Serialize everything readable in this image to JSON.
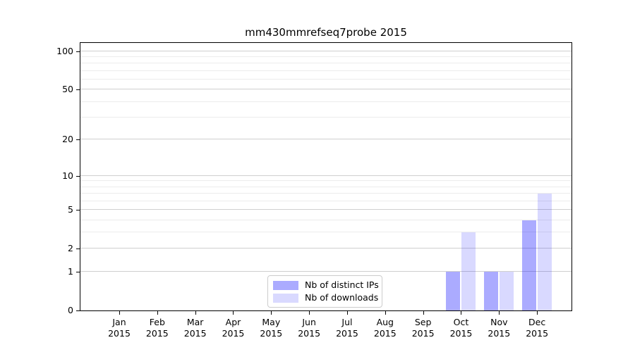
{
  "chart_data": {
    "type": "bar",
    "title": "mm430mmrefseq7probe 2015",
    "categories": [
      "Jan 2015",
      "Feb 2015",
      "Mar 2015",
      "Apr 2015",
      "May 2015",
      "Jun 2015",
      "Jul 2015",
      "Aug 2015",
      "Sep 2015",
      "Oct 2015",
      "Nov 2015",
      "Dec 2015"
    ],
    "x_tick_months": [
      "Jan",
      "Feb",
      "Mar",
      "Apr",
      "May",
      "Jun",
      "Jul",
      "Aug",
      "Sep",
      "Oct",
      "Nov",
      "Dec"
    ],
    "x_tick_year": "2015",
    "series": [
      {
        "name": "Nb of distinct IPs",
        "color": "rgba(0,0,255,0.33)",
        "values": [
          0,
          0,
          0,
          0,
          0,
          0,
          0,
          0,
          0,
          1,
          1,
          4
        ]
      },
      {
        "name": "Nb of downloads",
        "color": "rgba(0,0,255,0.15)",
        "values": [
          0,
          0,
          0,
          0,
          0,
          0,
          0,
          0,
          0,
          3,
          1,
          7
        ]
      }
    ],
    "yaxis": {
      "scale": "log1p",
      "ticks": [
        0,
        1,
        2,
        5,
        10,
        20,
        50,
        100
      ],
      "minor_gridlines": [
        3,
        4,
        6,
        7,
        8,
        9,
        30,
        40,
        60,
        70,
        80,
        90
      ],
      "visual_max": 116
    },
    "xlabel": "",
    "ylabel": "",
    "grid": "on",
    "legend_position": "lower center"
  },
  "colors": {
    "grid_major": "#cfcfcf",
    "grid_minor": "#ececec",
    "spine": "#000000",
    "text": "#000000",
    "background": "#ffffff"
  }
}
